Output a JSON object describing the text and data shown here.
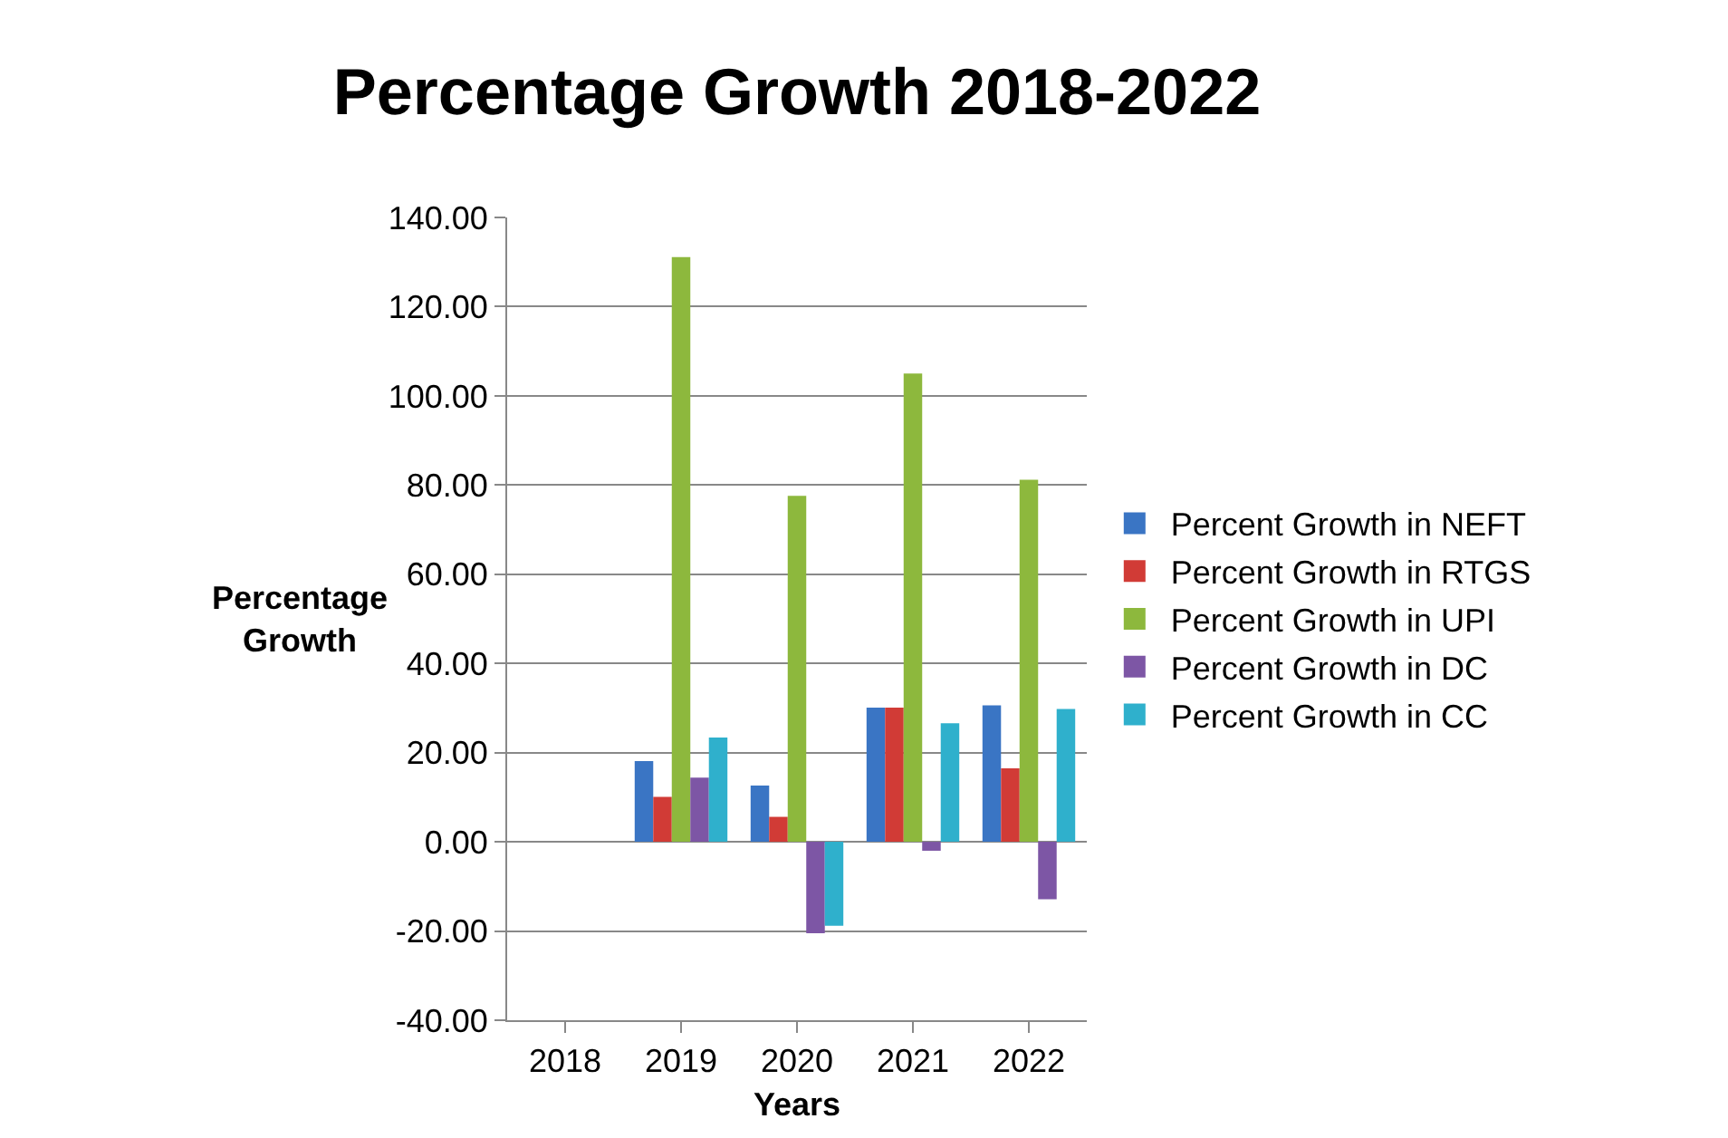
{
  "chart_data": {
    "type": "bar",
    "title": "Percentage Growth 2018-2022",
    "xlabel": "Years",
    "ylabel": "Percentage Growth",
    "categories": [
      "2018",
      "2019",
      "2020",
      "2021",
      "2022"
    ],
    "series": [
      {
        "name": "Percent Growth in NEFT",
        "color": "#3a75c4",
        "values": [
          null,
          18.1,
          12.6,
          30.1,
          30.6
        ]
      },
      {
        "name": "Percent Growth in RTGS",
        "color": "#d13b36",
        "values": [
          null,
          10.1,
          5.6,
          30.1,
          16.5
        ]
      },
      {
        "name": "Percent Growth in UPI",
        "color": "#8db83d",
        "values": [
          null,
          131.1,
          77.6,
          105.0,
          81.2
        ]
      },
      {
        "name": "Percent Growth in DC",
        "color": "#7d56a5",
        "values": [
          null,
          14.4,
          -20.5,
          -2.0,
          -12.9
        ]
      },
      {
        "name": "Percent Growth in CC",
        "color": "#2fb0cc",
        "values": [
          null,
          23.4,
          -18.8,
          26.6,
          29.8
        ]
      }
    ],
    "ylim": [
      -40,
      140
    ],
    "yticks": [
      {
        "value": -40,
        "label": "-40.00"
      },
      {
        "value": -20,
        "label": "-20.00"
      },
      {
        "value": 0,
        "label": "0.00"
      },
      {
        "value": 20,
        "label": "20.00"
      },
      {
        "value": 40,
        "label": "40.00"
      },
      {
        "value": 60,
        "label": "60.00"
      },
      {
        "value": 80,
        "label": "80.00"
      },
      {
        "value": 100,
        "label": "100.00"
      },
      {
        "value": 120,
        "label": "120.00"
      },
      {
        "value": 140,
        "label": "140.00"
      }
    ],
    "grid": "y",
    "legend": "right"
  }
}
